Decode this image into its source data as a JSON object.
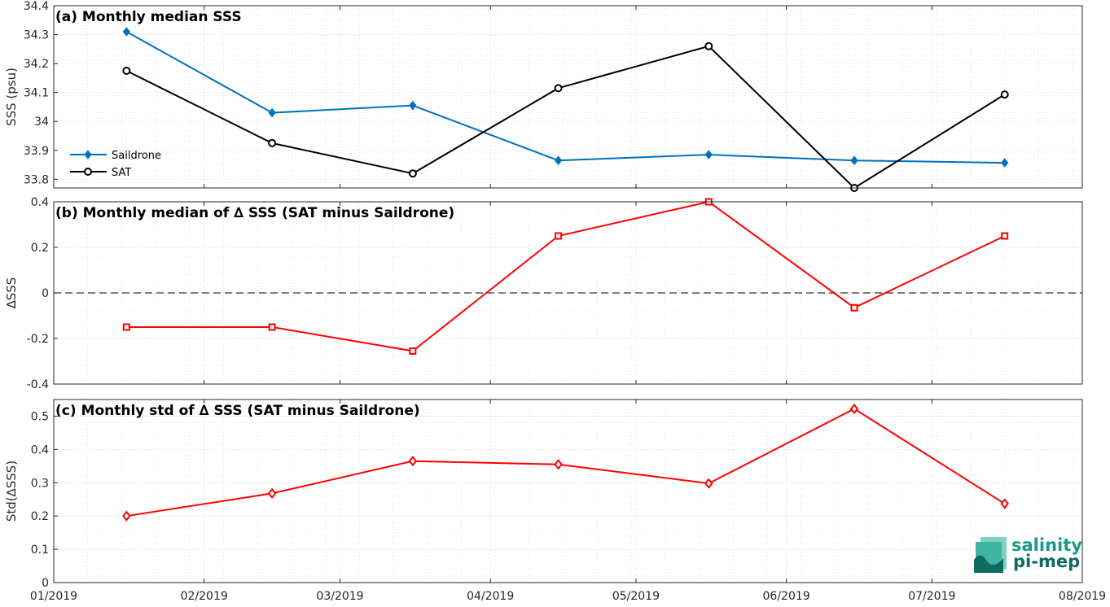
{
  "x_ticks": [
    "01/2019",
    "02/2019",
    "03/2019",
    "04/2019",
    "05/2019",
    "06/2019",
    "07/2019",
    "08/2019"
  ],
  "colors": {
    "saildrone": "#0072BD",
    "sat": "#000000",
    "delta": "#FF0000",
    "grid": "#d9d9d9",
    "axis": "#262626"
  },
  "logo": {
    "line1": "salinity",
    "line2": "pi-mep"
  },
  "chart_data": [
    {
      "type": "line",
      "title": "(a) Monthly median SSS",
      "ylabel": "SSS (psu)",
      "xlim": [
        "2019-01-01",
        "2019-08-01"
      ],
      "ylim": [
        33.77,
        34.4
      ],
      "yticks": [
        "34.4",
        "34.3",
        "34.2",
        "34.1",
        "34",
        "33.9",
        "33.8"
      ],
      "grid": true,
      "legend_position": "bottom-left",
      "x": [
        "2019-01-16",
        "2019-02-15",
        "2019-03-16",
        "2019-04-15",
        "2019-05-16",
        "2019-06-15",
        "2019-07-16"
      ],
      "series": [
        {
          "name": "Saildrone",
          "marker": "diamond",
          "values": [
            34.31,
            34.03,
            34.055,
            33.865,
            33.885,
            33.865,
            33.857
          ]
        },
        {
          "name": "SAT",
          "marker": "circle",
          "values": [
            34.175,
            33.925,
            33.82,
            34.115,
            34.26,
            33.77,
            34.093
          ]
        }
      ]
    },
    {
      "type": "line",
      "title": "(b) Monthly median of ∆ SSS (SAT minus Saildrone)",
      "ylabel": "∆SSS",
      "xlim": [
        "2019-01-01",
        "2019-08-01"
      ],
      "ylim": [
        -0.4,
        0.4
      ],
      "yticks": [
        "0.4",
        "0.2",
        "0",
        "-0.2",
        "-0.4"
      ],
      "grid": true,
      "zero_line": true,
      "x": [
        "2019-01-16",
        "2019-02-15",
        "2019-03-16",
        "2019-04-15",
        "2019-05-16",
        "2019-06-15",
        "2019-07-16"
      ],
      "series": [
        {
          "marker": "square",
          "values": [
            -0.15,
            -0.15,
            -0.255,
            0.25,
            0.4,
            -0.065,
            0.25
          ]
        }
      ]
    },
    {
      "type": "line",
      "title": "(c) Monthly std of ∆ SSS (SAT minus Saildrone)",
      "ylabel": "Std(∆SSS)",
      "xlim": [
        "2019-01-01",
        "2019-08-01"
      ],
      "ylim": [
        0,
        0.55
      ],
      "yticks": [
        "0.5",
        "0.4",
        "0.3",
        "0.2",
        "0.1",
        "0"
      ],
      "grid": true,
      "x": [
        "2019-01-16",
        "2019-02-15",
        "2019-03-16",
        "2019-04-15",
        "2019-05-16",
        "2019-06-15",
        "2019-07-16"
      ],
      "series": [
        {
          "marker": "diamond",
          "values": [
            0.2,
            0.268,
            0.365,
            0.355,
            0.298,
            0.522,
            0.237
          ]
        }
      ]
    }
  ]
}
